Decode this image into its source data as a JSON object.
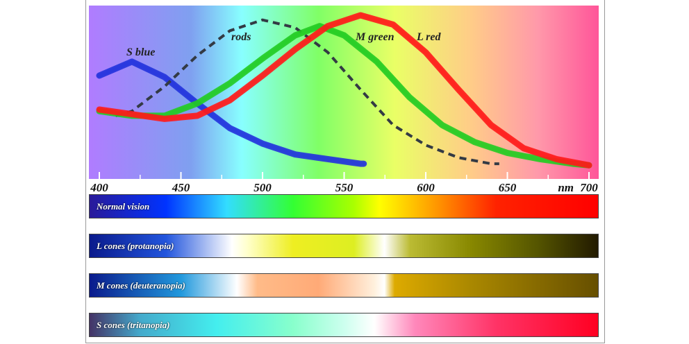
{
  "chart_data": {
    "type": "line",
    "x_unit_label": "nm",
    "xlim": [
      400,
      700
    ],
    "xticks": [
      400,
      450,
      500,
      550,
      600,
      650,
      700
    ],
    "xminorticks": [
      425,
      475,
      525,
      575,
      625,
      675
    ],
    "ylim": [
      0,
      100
    ],
    "series": [
      {
        "name": "S blue",
        "color": "#2233dd",
        "dashed": false,
        "x": [
          400,
          420,
          440,
          460,
          480,
          500,
          520,
          540,
          560,
          562
        ],
        "values": [
          61,
          70,
          60,
          43,
          27,
          17,
          10,
          7,
          4,
          4
        ]
      },
      {
        "name": "rods",
        "color": "#333a44",
        "dashed": true,
        "x": [
          410,
          420,
          440,
          460,
          480,
          500,
          520,
          540,
          560,
          580,
          600,
          620,
          640,
          645
        ],
        "values": [
          35,
          38,
          54,
          74,
          90,
          97,
          92,
          76,
          52,
          29,
          16,
          8,
          4,
          4
        ]
      },
      {
        "name": "M green",
        "color": "#22cc22",
        "dashed": false,
        "x": [
          400,
          420,
          440,
          460,
          480,
          500,
          520,
          535,
          550,
          570,
          590,
          610,
          630,
          650,
          670,
          690,
          700
        ],
        "values": [
          38,
          35,
          35,
          43,
          56,
          72,
          87,
          93,
          87,
          70,
          47,
          29,
          18,
          11,
          7,
          4,
          3
        ]
      },
      {
        "name": "L red",
        "color": "#ff1a1a",
        "dashed": false,
        "x": [
          400,
          420,
          440,
          460,
          480,
          500,
          520,
          540,
          560,
          580,
          600,
          620,
          640,
          660,
          680,
          700
        ],
        "values": [
          39,
          36,
          33,
          35,
          45,
          61,
          78,
          93,
          100,
          94,
          76,
          52,
          29,
          14,
          7,
          3
        ]
      }
    ],
    "bands": [
      {
        "label": "Normal vision"
      },
      {
        "label": "L cones (protanopia)"
      },
      {
        "label": "M cones (deuteranopia)"
      },
      {
        "label": "S cones (tritanopia)"
      }
    ]
  }
}
